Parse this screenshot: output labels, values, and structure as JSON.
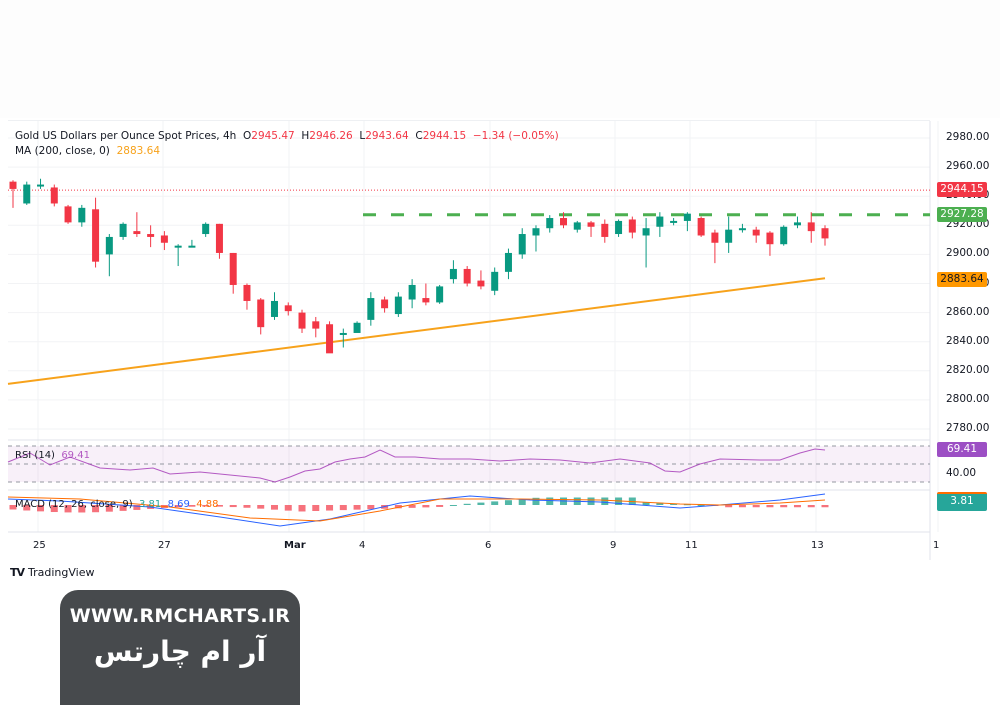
{
  "header": {
    "symbol_title": "Gold US Dollars per Ounce Spot Prices, 4h",
    "open_label": "O",
    "open": "2945.47",
    "high_label": "H",
    "high": "2946.26",
    "low_label": "L",
    "low": "2943.64",
    "close_label": "C",
    "close": "2944.15",
    "change": "−1.34 (−0.05%)",
    "ma_label": "MA (200, close, 0)",
    "ma_value": "2883.64"
  },
  "rsi": {
    "label": "RSI (14)",
    "value": "69.41",
    "axis_value": "40.00"
  },
  "macd": {
    "label": "MACD (12, 26, close, 9)",
    "hist": "3.81",
    "macd": "8.69",
    "signal": "4.88",
    "badge": "3.81"
  },
  "badges": {
    "last_price": "2944.15",
    "resistance": "2927.28",
    "ma": "2883.64",
    "rsi": "69.41"
  },
  "colors": {
    "up": "#089981",
    "down": "#f23645",
    "ma": "#f7a21b",
    "resistance": "#4caf50",
    "rsi": "#9c27b0",
    "macd": "#2962ff",
    "signal": "#ff6d00"
  },
  "brand": {
    "tradingview": "TradingView"
  },
  "watermark": {
    "url": "WWW.RMCHARTS.IR",
    "persian": "آر ام چارتس"
  },
  "chart_data": {
    "type": "candlestick",
    "title": "Gold US Dollars per Ounce Spot Prices, 4h",
    "xlabel": "",
    "ylabel": "Price (USD)",
    "y_ticks": [
      2980,
      2960,
      2940,
      2920,
      2900,
      2880,
      2860,
      2840,
      2820,
      2800,
      2780
    ],
    "ylim": [
      2773,
      2990
    ],
    "x_ticks": [
      "25",
      "27",
      "Mar",
      "4",
      "6",
      "9",
      "11",
      "13",
      "1"
    ],
    "last_price": 2944.15,
    "resistance_level": 2927.28,
    "ma200": {
      "start": 2811,
      "end": 2883.64
    },
    "candles": [
      [
        2950,
        2945,
        2951,
        2932
      ],
      [
        2935,
        2948,
        2950,
        2934
      ],
      [
        2948,
        2948,
        2952,
        2945
      ],
      [
        2946,
        2935,
        2948,
        2933
      ],
      [
        2933,
        2922,
        2934,
        2921
      ],
      [
        2922,
        2932,
        2934,
        2919
      ],
      [
        2931,
        2895,
        2939,
        2891
      ],
      [
        2900,
        2912,
        2914,
        2885
      ],
      [
        2912,
        2921,
        2922,
        2910
      ],
      [
        2916,
        2914,
        2929,
        2912
      ],
      [
        2914,
        2912,
        2920,
        2905
      ],
      [
        2913,
        2908,
        2916,
        2903
      ],
      [
        2906,
        2906,
        2907,
        2892
      ],
      [
        2906,
        2906,
        2910,
        2905
      ],
      [
        2914,
        2921,
        2922,
        2912
      ],
      [
        2921,
        2901,
        2921,
        2897
      ],
      [
        2901,
        2879,
        2901,
        2873
      ],
      [
        2879,
        2868,
        2880,
        2862
      ],
      [
        2869,
        2850,
        2870,
        2845
      ],
      [
        2857,
        2868,
        2874,
        2855
      ],
      [
        2865,
        2861,
        2867,
        2858
      ],
      [
        2860,
        2849,
        2862,
        2846
      ],
      [
        2854,
        2849,
        2857,
        2843
      ],
      [
        2852,
        2832,
        2854,
        2833
      ],
      [
        2846,
        2846,
        2849,
        2836
      ],
      [
        2846,
        2853,
        2854,
        2849
      ],
      [
        2855,
        2870,
        2874,
        2851
      ],
      [
        2869,
        2863,
        2871,
        2860
      ],
      [
        2859,
        2871,
        2874,
        2857
      ],
      [
        2869,
        2879,
        2883,
        2863
      ],
      [
        2870,
        2867,
        2880,
        2865
      ],
      [
        2867,
        2878,
        2879,
        2866
      ],
      [
        2883,
        2890,
        2896,
        2880
      ],
      [
        2890,
        2880,
        2892,
        2878
      ],
      [
        2882,
        2878,
        2889,
        2876
      ],
      [
        2875,
        2888,
        2891,
        2872
      ],
      [
        2888,
        2901,
        2904,
        2883
      ],
      [
        2900,
        2914,
        2918,
        2897
      ],
      [
        2913,
        2918,
        2920,
        2902
      ],
      [
        2918,
        2925,
        2927,
        2915
      ],
      [
        2925,
        2920,
        2929,
        2918
      ],
      [
        2917,
        2922,
        2923,
        2915
      ],
      [
        2922,
        2919,
        2923,
        2912
      ],
      [
        2921,
        2912,
        2924,
        2908
      ],
      [
        2914,
        2923,
        2924,
        2912
      ],
      [
        2924,
        2915,
        2926,
        2911
      ],
      [
        2913,
        2918,
        2925,
        2891
      ],
      [
        2919,
        2926,
        2929,
        2912
      ],
      [
        2923,
        2923,
        2925,
        2920
      ],
      [
        2923,
        2928,
        2929,
        2916
      ],
      [
        2925,
        2913,
        2926,
        2912
      ],
      [
        2915,
        2908,
        2917,
        2894
      ],
      [
        2908,
        2917,
        2926,
        2901
      ],
      [
        2918,
        2918,
        2921,
        2915
      ],
      [
        2917,
        2913,
        2919,
        2908
      ],
      [
        2915,
        2907,
        2916,
        2899
      ],
      [
        2907,
        2919,
        2920,
        2906
      ],
      [
        2920,
        2922,
        2926,
        2918
      ],
      [
        2922,
        2916,
        2929,
        2908
      ],
      [
        2918,
        2911,
        2920,
        2906
      ]
    ],
    "rsi_series": {
      "overbought": 70,
      "mid": 50,
      "oversold": 30,
      "last": 69.41
    },
    "macd_series": {
      "macd": 8.69,
      "signal": 4.88,
      "histogram": 3.81
    }
  }
}
